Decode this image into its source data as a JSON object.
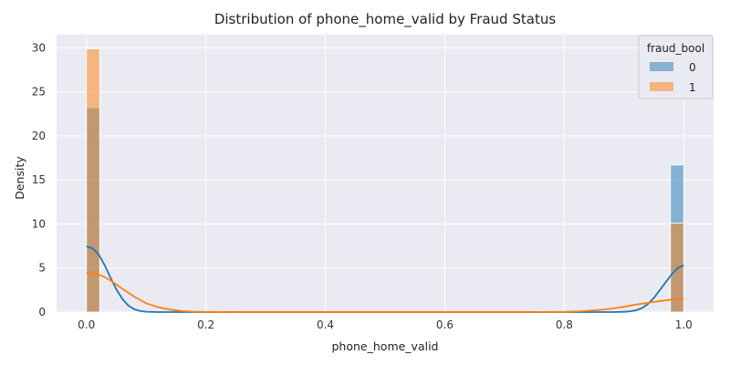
{
  "chart_data": {
    "type": "histogram",
    "title": "Distribution of phone_home_valid by Fraud Status",
    "xlabel": "phone_home_valid",
    "ylabel": "Density",
    "xlim": [
      -0.05,
      1.05
    ],
    "ylim": [
      0,
      31.5
    ],
    "xticks": [
      "0.0",
      "0.2",
      "0.4",
      "0.6",
      "0.8",
      "1.0"
    ],
    "yticks": [
      "0",
      "5",
      "10",
      "15",
      "20",
      "25",
      "30"
    ],
    "grid": true,
    "legend": {
      "title": "fraud_bool",
      "placement": "top-right",
      "entries": [
        {
          "label": "0",
          "color": "#1f77b4"
        },
        {
          "label": "1",
          "color": "#ff7f0e"
        }
      ]
    },
    "bin_width": 0.02222,
    "series": [
      {
        "name": "0",
        "color": "#1f77b4",
        "bars": [
          {
            "x_start": 0.0,
            "x_end": 0.0222,
            "density": 23.2
          },
          {
            "x_start": 0.9778,
            "x_end": 1.0,
            "density": 16.7
          }
        ],
        "kde": [
          [
            0.0,
            7.45
          ],
          [
            0.01,
            7.25
          ],
          [
            0.02,
            6.6
          ],
          [
            0.03,
            5.4
          ],
          [
            0.04,
            3.95
          ],
          [
            0.05,
            2.6
          ],
          [
            0.06,
            1.5
          ],
          [
            0.07,
            0.75
          ],
          [
            0.08,
            0.32
          ],
          [
            0.09,
            0.12
          ],
          [
            0.1,
            0.04
          ],
          [
            0.12,
            0.0
          ],
          [
            0.2,
            0.0
          ],
          [
            0.4,
            0.0
          ],
          [
            0.6,
            0.0
          ],
          [
            0.8,
            0.0
          ],
          [
            0.88,
            0.0
          ],
          [
            0.9,
            0.03
          ],
          [
            0.91,
            0.08
          ],
          [
            0.92,
            0.2
          ],
          [
            0.93,
            0.45
          ],
          [
            0.94,
            0.9
          ],
          [
            0.95,
            1.6
          ],
          [
            0.96,
            2.5
          ],
          [
            0.97,
            3.4
          ],
          [
            0.98,
            4.3
          ],
          [
            0.99,
            5.0
          ],
          [
            1.0,
            5.3
          ]
        ]
      },
      {
        "name": "1",
        "color": "#ff7f0e",
        "bars": [
          {
            "x_start": 0.0,
            "x_end": 0.0222,
            "density": 29.9
          },
          {
            "x_start": 0.9778,
            "x_end": 1.0,
            "density": 10.1
          }
        ],
        "kde": [
          [
            0.0,
            4.45
          ],
          [
            0.01,
            4.4
          ],
          [
            0.02,
            4.25
          ],
          [
            0.03,
            4.0
          ],
          [
            0.04,
            3.6
          ],
          [
            0.05,
            3.15
          ],
          [
            0.06,
            2.65
          ],
          [
            0.08,
            1.75
          ],
          [
            0.1,
            1.0
          ],
          [
            0.12,
            0.55
          ],
          [
            0.14,
            0.28
          ],
          [
            0.16,
            0.12
          ],
          [
            0.18,
            0.05
          ],
          [
            0.2,
            0.02
          ],
          [
            0.25,
            0.0
          ],
          [
            0.5,
            0.0
          ],
          [
            0.75,
            0.0
          ],
          [
            0.8,
            0.03
          ],
          [
            0.83,
            0.1
          ],
          [
            0.86,
            0.25
          ],
          [
            0.88,
            0.4
          ],
          [
            0.9,
            0.6
          ],
          [
            0.92,
            0.85
          ],
          [
            0.94,
            1.05
          ],
          [
            0.96,
            1.25
          ],
          [
            0.98,
            1.42
          ],
          [
            1.0,
            1.5
          ]
        ]
      }
    ]
  }
}
